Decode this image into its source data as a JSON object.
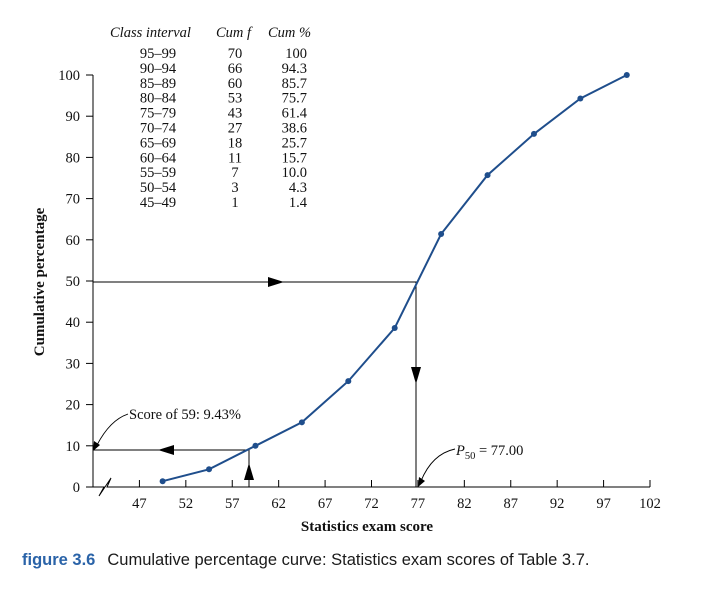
{
  "caption": {
    "figure_label": "figure 3.6",
    "text": "Cumulative percentage curve: Statistics exam scores of Table 3.7."
  },
  "table": {
    "headers": [
      "Class interval",
      "Cum f",
      "Cum %"
    ],
    "rows": [
      [
        "95–99",
        "70",
        "100"
      ],
      [
        "90–94",
        "66",
        "94.3"
      ],
      [
        "85–89",
        "60",
        "85.7"
      ],
      [
        "80–84",
        "53",
        "75.7"
      ],
      [
        "75–79",
        "43",
        "61.4"
      ],
      [
        "70–74",
        "27",
        "38.6"
      ],
      [
        "65–69",
        "18",
        "25.7"
      ],
      [
        "60–64",
        "11",
        "15.7"
      ],
      [
        "55–59",
        "7",
        "10.0"
      ],
      [
        "50–54",
        "3",
        "4.3"
      ],
      [
        "45–49",
        "1",
        "1.4"
      ]
    ]
  },
  "annotations": {
    "score59": "Score of 59: 9.43%",
    "p50_prefix": "P",
    "p50_sub": "50",
    "p50_value": " = 77.00"
  },
  "colors": {
    "curve": "#1f4e8c",
    "axis": "#000000",
    "caption_label": "#2a63a8"
  },
  "chart_data": {
    "type": "line",
    "xlabel": "Statistics exam score",
    "ylabel": "Cumulative percentage",
    "xlim": [
      42,
      102
    ],
    "ylim": [
      0,
      100
    ],
    "xticks": [
      47,
      52,
      57,
      62,
      67,
      72,
      77,
      82,
      87,
      92,
      97,
      102
    ],
    "yticks": [
      0,
      10,
      20,
      30,
      40,
      50,
      60,
      70,
      80,
      90,
      100
    ],
    "axis_break": "x-axis near origin",
    "series": [
      {
        "x": [
          49.5,
          54.5,
          59.5,
          64.5,
          69.5,
          74.5,
          79.5,
          84.5,
          89.5,
          94.5,
          99.5
        ],
        "y": [
          1.4,
          4.3,
          10.0,
          15.7,
          25.7,
          38.6,
          61.4,
          75.7,
          85.7,
          94.3,
          100
        ]
      }
    ],
    "guides": [
      {
        "from": [
          42,
          50
        ],
        "to": [
          77,
          50
        ],
        "then_to": [
          77,
          0
        ]
      },
      {
        "from": [
          59,
          0
        ],
        "to": [
          59,
          9.43
        ],
        "then_to": [
          42,
          9.43
        ]
      }
    ]
  }
}
